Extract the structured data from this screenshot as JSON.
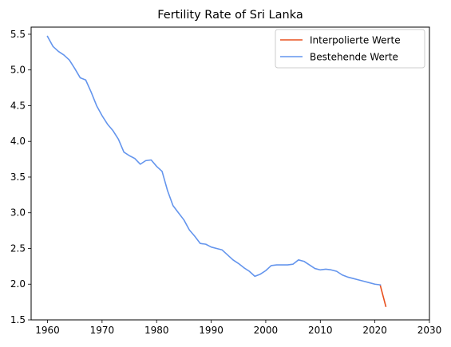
{
  "chart_data": {
    "type": "line",
    "title": "Fertility Rate of Sri Lanka",
    "xlabel": "",
    "ylabel": "",
    "xlim": [
      1957,
      2030
    ],
    "ylim": [
      1.5,
      5.6
    ],
    "xticks": [
      1960,
      1970,
      1980,
      1990,
      2000,
      2010,
      2020,
      2030
    ],
    "yticks": [
      1.5,
      2.0,
      2.5,
      3.0,
      3.5,
      4.0,
      4.5,
      5.0,
      5.5
    ],
    "grid": false,
    "legend_position": "top-right",
    "series": [
      {
        "name": "Interpolierte Werte",
        "color": "#e8501e",
        "x": [
          2021,
          2022
        ],
        "y": [
          1.98,
          1.69
        ]
      },
      {
        "name": "Bestehende Werte",
        "color": "#6495ed",
        "x": [
          1960,
          1961,
          1962,
          1963,
          1964,
          1965,
          1966,
          1967,
          1968,
          1969,
          1970,
          1971,
          1972,
          1973,
          1974,
          1975,
          1976,
          1977,
          1978,
          1979,
          1980,
          1981,
          1982,
          1983,
          1984,
          1985,
          1986,
          1987,
          1988,
          1989,
          1990,
          1991,
          1992,
          1993,
          1994,
          1995,
          1996,
          1997,
          1998,
          1999,
          2000,
          2001,
          2002,
          2003,
          2004,
          2005,
          2006,
          2007,
          2008,
          2009,
          2010,
          2011,
          2012,
          2013,
          2014,
          2015,
          2016,
          2017,
          2018,
          2019,
          2020,
          2021
        ],
        "y": [
          5.47,
          5.33,
          5.26,
          5.21,
          5.14,
          5.02,
          4.89,
          4.86,
          4.69,
          4.5,
          4.36,
          4.24,
          4.15,
          4.03,
          3.85,
          3.8,
          3.76,
          3.68,
          3.73,
          3.74,
          3.65,
          3.58,
          3.31,
          3.1,
          3.0,
          2.9,
          2.76,
          2.67,
          2.57,
          2.56,
          2.52,
          2.5,
          2.48,
          2.41,
          2.34,
          2.29,
          2.23,
          2.18,
          2.11,
          2.14,
          2.19,
          2.26,
          2.27,
          2.27,
          2.27,
          2.28,
          2.34,
          2.32,
          2.27,
          2.22,
          2.2,
          2.21,
          2.2,
          2.18,
          2.13,
          2.1,
          2.08,
          2.06,
          2.04,
          2.02,
          2.0,
          1.99
        ]
      }
    ]
  }
}
